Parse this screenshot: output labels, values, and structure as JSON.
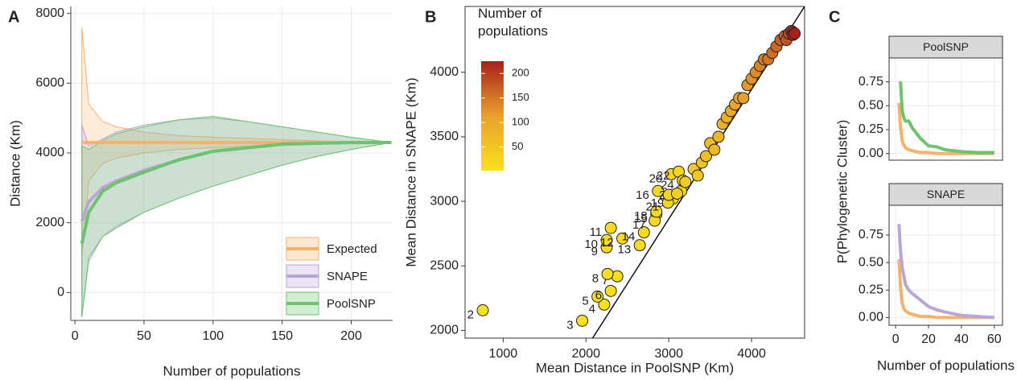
{
  "chart_data": [
    {
      "panel": "A",
      "type": "line",
      "xlabel": "Number of populations",
      "ylabel": "Distance (Km)",
      "x": [
        5,
        10,
        20,
        30,
        50,
        75,
        100,
        125,
        150,
        175,
        200,
        229
      ],
      "xlim": [
        -3,
        230
      ],
      "ylim": [
        -800,
        8200
      ],
      "xticks": [
        0,
        50,
        100,
        150,
        200
      ],
      "yticks": [
        0,
        2000,
        4000,
        6000,
        8000
      ],
      "grid": true,
      "legend": "bottom-right",
      "series": [
        {
          "name": "Expected",
          "color": "#f6b26b",
          "values": [
            4300,
            4300,
            4300,
            4300,
            4300,
            4300,
            4300,
            4300,
            4300,
            4300,
            4300,
            4300
          ],
          "upper": [
            7600,
            5400,
            4900,
            4750,
            4600,
            4500,
            4450,
            4420,
            4380,
            4350,
            4320,
            4300
          ],
          "lower": [
            1000,
            3200,
            3700,
            3850,
            4000,
            4100,
            4150,
            4200,
            4230,
            4260,
            4280,
            4300
          ]
        },
        {
          "name": "SNAPE",
          "color": "#b9a6d6",
          "values": [
            2050,
            2600,
            3000,
            3200,
            3500,
            3800,
            4050,
            4150,
            4250,
            4280,
            4300,
            4300
          ],
          "upper": [
            4800,
            4200,
            4400,
            4600,
            4800,
            4950,
            5000,
            4900,
            4750,
            4600,
            4450,
            4300
          ],
          "lower": [
            -700,
            900,
            1600,
            1900,
            2300,
            2700,
            3050,
            3350,
            3650,
            3900,
            4100,
            4300
          ]
        },
        {
          "name": "PoolSNP",
          "color": "#6cc46c",
          "values": [
            1400,
            2300,
            2900,
            3150,
            3450,
            3800,
            4050,
            4150,
            4250,
            4280,
            4300,
            4300
          ],
          "upper": [
            4200,
            4100,
            4350,
            4550,
            4750,
            4950,
            5050,
            4900,
            4750,
            4600,
            4450,
            4300
          ],
          "lower": [
            -700,
            1000,
            1600,
            1850,
            2300,
            2700,
            3050,
            3350,
            3650,
            3900,
            4100,
            4300
          ]
        }
      ]
    },
    {
      "panel": "B",
      "type": "scatter",
      "xlabel": "Mean Distance in PoolSNP (Km)",
      "ylabel": "Mean Distance in SNAPE (Km)",
      "xlim": [
        540,
        4640
      ],
      "ylim": [
        1940,
        4510
      ],
      "xticks": [
        1000,
        2000,
        3000,
        4000
      ],
      "yticks": [
        2000,
        2500,
        3000,
        3500,
        4000
      ],
      "colorbar": {
        "title": "Number of populations",
        "limits": [
          2,
          225
        ],
        "colors": [
          "#f9e11c",
          "#e8a12c",
          "#a8201a"
        ],
        "ticks": [
          50,
          100,
          150,
          200
        ]
      },
      "trend": {
        "x": [
          2080,
          4640
        ],
        "y": [
          1940,
          4510
        ]
      },
      "series": [
        {
          "x": [
            754,
            1954,
            2220,
            2140,
            2300,
            2378,
            2260,
            2250,
            2250,
            2300,
            2440,
            2650,
            2700,
            2850,
            2870,
            2830,
            2850,
            3050,
            3030,
            2990,
            3120,
            3150,
            3170
          ],
          "y": [
            2156,
            2075,
            2200,
            2262,
            2306,
            2419,
            2437,
            2644,
            2700,
            2794,
            2712,
            2660,
            2760,
            2900,
            3080,
            2850,
            2920,
            3020,
            3210,
            2990,
            3230,
            3080,
            3160
          ],
          "n": [
            2,
            3,
            4,
            5,
            6,
            7,
            8,
            9,
            10,
            11,
            12,
            13,
            14,
            15,
            16,
            17,
            18,
            19,
            20,
            21,
            22,
            23,
            24
          ]
        },
        {
          "x": [
            3000,
            3100,
            3200,
            3300,
            3350,
            3400,
            3450,
            3500,
            3550,
            3600,
            3650,
            3700,
            3750,
            3800,
            3850,
            3900,
            3950,
            4000,
            4050,
            4100,
            4150,
            4200,
            4250,
            4300,
            4350,
            4400,
            4420,
            4450,
            4480,
            4500,
            4500,
            4520
          ],
          "y": [
            3050,
            3060,
            3150,
            3250,
            3200,
            3300,
            3350,
            3450,
            3400,
            3500,
            3600,
            3650,
            3700,
            3750,
            3800,
            3800,
            3900,
            3950,
            4000,
            4050,
            4100,
            4100,
            4150,
            4200,
            4250,
            4280,
            4250,
            4300,
            4320,
            4310,
            4290,
            4300
          ],
          "n": [
            25,
            31,
            37,
            43,
            49,
            55,
            61,
            67,
            73,
            79,
            85,
            91,
            97,
            103,
            109,
            115,
            121,
            127,
            133,
            139,
            145,
            151,
            157,
            163,
            169,
            175,
            181,
            190,
            200,
            210,
            218,
            225
          ]
        }
      ]
    },
    {
      "panel": "C",
      "type": "line",
      "xlabel": "Number of populations",
      "ylabel": "P(Phylogenetic Cluster)",
      "x": [
        2,
        3,
        4,
        5,
        6,
        8,
        10,
        15,
        20,
        25,
        30,
        40,
        50,
        60
      ],
      "xlim": [
        -4,
        65
      ],
      "xticks": [
        0,
        20,
        40,
        60
      ],
      "yticks": [
        {
          "value": 0,
          "label": "0.00"
        },
        0.25,
        {
          "value": 0.5,
          "label": "0.50"
        },
        0.75
      ],
      "grid": true,
      "facets": [
        {
          "strip": "PoolSNP",
          "ylim": [
            -0.07,
            1.0
          ],
          "series": [
            {
              "color": "#f6b26b",
              "values": [
                0.53,
                0.27,
                0.13,
                0.09,
                0.06,
                0.04,
                0.03,
                0.01,
                0.01,
                0,
                0,
                0,
                0,
                0
              ]
            },
            {
              "color": "#6cc46c",
              "values": [
                0.74,
                0.74,
                0.45,
                0.37,
                0.34,
                0.34,
                0.27,
                0.16,
                0.08,
                0.07,
                0.04,
                0.02,
                0.01,
                0.01
              ]
            }
          ]
        },
        {
          "strip": "SNAPE",
          "ylim": [
            -0.07,
            1.02
          ],
          "series": [
            {
              "color": "#f6b26b",
              "values": [
                0.53,
                0.27,
                0.13,
                0.08,
                0.06,
                0.04,
                0.03,
                0.01,
                0.01,
                0,
                0,
                0,
                0,
                0
              ]
            },
            {
              "color": "#b9a6d6",
              "values": [
                0.85,
                0.6,
                0.45,
                0.38,
                0.3,
                0.25,
                0.22,
                0.16,
                0.1,
                0.07,
                0.05,
                0.02,
                0.01,
                0
              ]
            }
          ]
        }
      ]
    }
  ]
}
